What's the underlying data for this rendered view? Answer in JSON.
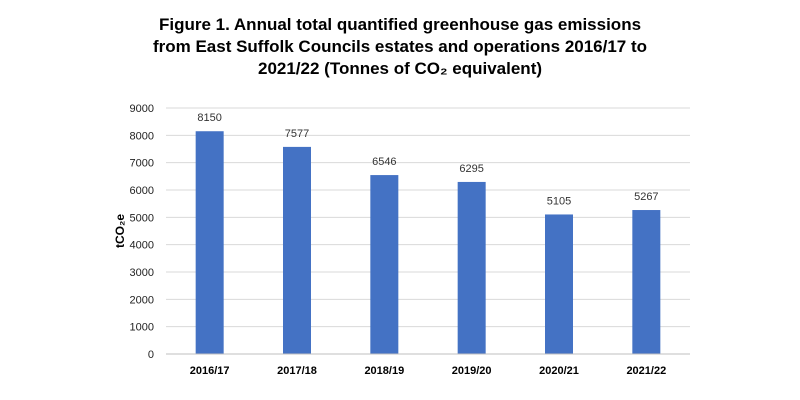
{
  "chart_data": {
    "type": "bar",
    "title_lines": [
      "Figure 1. Annual total quantified greenhouse gas emissions",
      "from East Suffolk Councils estates and operations 2016/17 to",
      "2021/22 (Tonnes of CO₂ equivalent)"
    ],
    "xlabel": "",
    "ylabel": "tCO₂e",
    "categories": [
      "2016/17",
      "2017/18",
      "2018/19",
      "2019/20",
      "2020/21",
      "2021/22"
    ],
    "values": [
      8150,
      7577,
      6546,
      6295,
      5105,
      5267
    ],
    "ylim": [
      0,
      9000
    ],
    "yticks": [
      0,
      1000,
      2000,
      3000,
      4000,
      5000,
      6000,
      7000,
      8000,
      9000
    ],
    "grid": true,
    "legend": "none",
    "bar_color": "#4472C4"
  }
}
